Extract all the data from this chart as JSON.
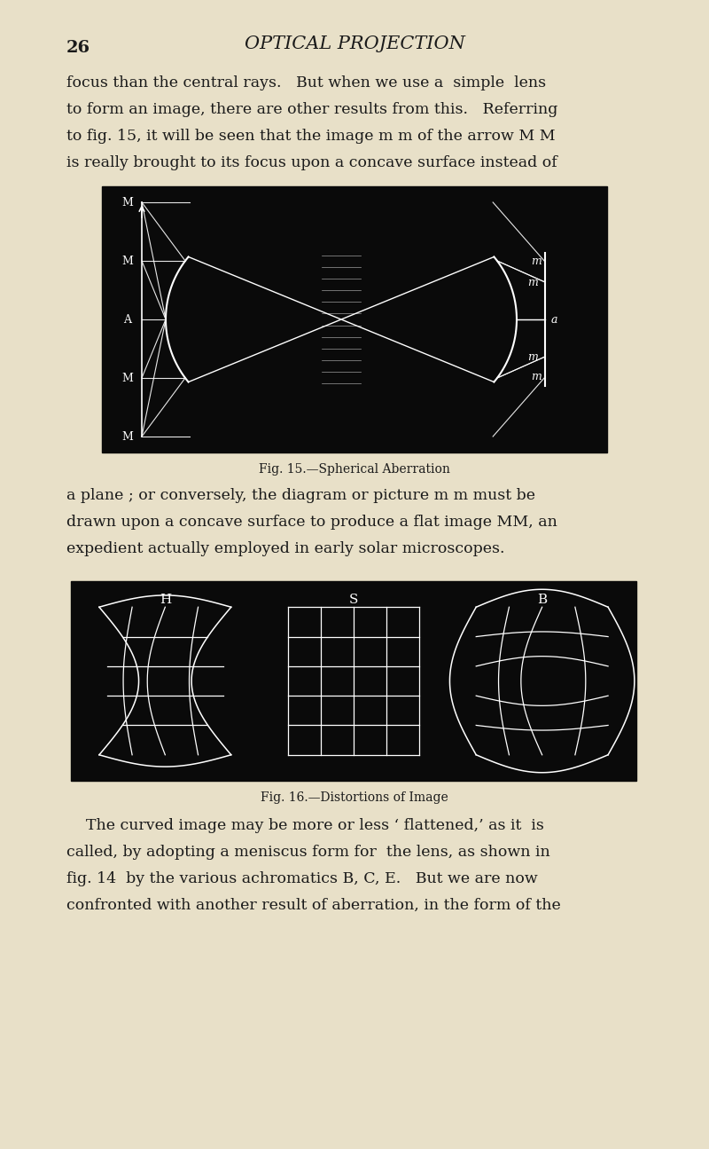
{
  "bg_color": "#e8e0c8",
  "line_color": "#ffffff",
  "page_number": "26",
  "header_title": "OPTICAL PROJECTION",
  "para1_line1": "focus than the central rays.   But when we use a  simple  lens",
  "para1_line2": "to form an image, there are other results from this.   Referring",
  "para1_line3": "to fig. 15, it will be seen that the image m m of the arrow M M",
  "para1_line4": "is really brought to its focus upon a concave surface instead of",
  "fig15_caption": "Fig. 15.—Spherical Aberration",
  "para2_line1": "a plane ; or conversely, the diagram or picture m m must be",
  "para2_line2": "drawn upon a concave surface to produce a flat image MM, an",
  "para2_line3": "expedient actually employed in early solar microscopes.",
  "fig16_caption": "Fig. 16.—Distortions of Image",
  "para3_line1": "    The curved image may be more or less ‘ flattened,’ as it  is",
  "para3_line2": "called, by adopting a meniscus form for  the lens, as shown in",
  "para3_line3": "fig. 14  by the various achromatics B, C, E.   But we are now",
  "para3_line4": "confronted with another result of aberration, in the form of the"
}
